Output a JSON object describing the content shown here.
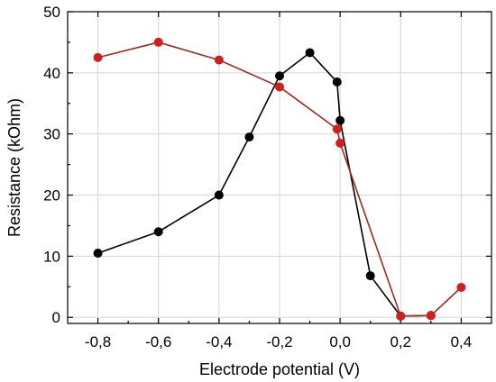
{
  "chart_data": {
    "type": "line",
    "title": "",
    "xlabel": "Electrode potential (V)",
    "ylabel": "Resistance (kOhm)",
    "xlim": [
      -0.9,
      0.5
    ],
    "ylim": [
      -1,
      50
    ],
    "x_ticks": [
      -0.8,
      -0.6,
      -0.4,
      -0.2,
      0.0,
      0.2,
      0.4
    ],
    "x_tick_labels": [
      "-0,8",
      "-0,6",
      "-0,4",
      "-0,2",
      "0,0",
      "0,2",
      "0,4"
    ],
    "y_ticks": [
      0,
      10,
      20,
      30,
      40,
      50
    ],
    "y_tick_labels": [
      "0",
      "10",
      "20",
      "30",
      "40",
      "50"
    ],
    "grid": true,
    "legend": "none",
    "series": [
      {
        "color": "#000000",
        "marker_color": "#000000",
        "points": [
          {
            "x": -0.8,
            "y": 10.5
          },
          {
            "x": -0.6,
            "y": 14.0
          },
          {
            "x": -0.4,
            "y": 20.0
          },
          {
            "x": -0.3,
            "y": 29.5
          },
          {
            "x": -0.2,
            "y": 39.5
          },
          {
            "x": -0.1,
            "y": 43.3
          },
          {
            "x": -0.01,
            "y": 38.5
          },
          {
            "x": 0.0,
            "y": 32.2
          },
          {
            "x": 0.1,
            "y": 6.8
          },
          {
            "x": 0.2,
            "y": 0.2
          },
          {
            "x": 0.3,
            "y": 0.3
          }
        ]
      },
      {
        "color": "#a0281e",
        "marker_color": "#d11f1f",
        "points": [
          {
            "x": -0.8,
            "y": 42.5
          },
          {
            "x": -0.6,
            "y": 45.0
          },
          {
            "x": -0.4,
            "y": 42.1
          },
          {
            "x": -0.2,
            "y": 37.7
          },
          {
            "x": -0.01,
            "y": 30.8
          },
          {
            "x": 0.0,
            "y": 28.5
          },
          {
            "x": 0.2,
            "y": 0.2
          },
          {
            "x": 0.3,
            "y": 0.3
          },
          {
            "x": 0.4,
            "y": 4.9
          }
        ]
      }
    ]
  }
}
